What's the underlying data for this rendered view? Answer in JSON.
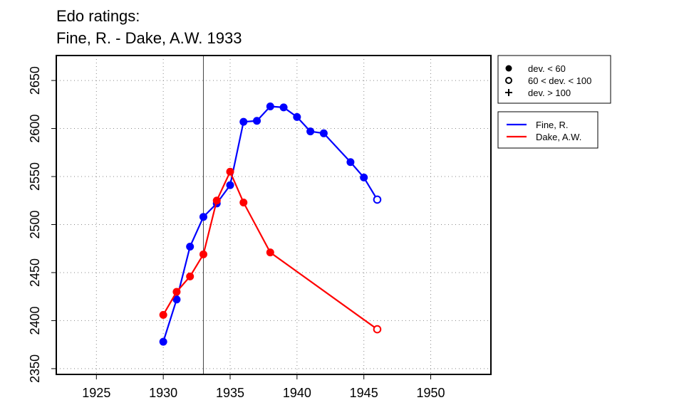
{
  "title_line1": "Edo ratings:",
  "title_line2": "Fine, R. - Dake, A.W. 1933",
  "chart_data": {
    "type": "line",
    "xlim": [
      1922,
      1954.5
    ],
    "ylim": [
      2344,
      2676
    ],
    "x_ticks": [
      1925,
      1930,
      1935,
      1940,
      1945,
      1950
    ],
    "y_ticks": [
      2350,
      2400,
      2450,
      2500,
      2550,
      2600,
      2650
    ],
    "grid": true,
    "reference_line_x": 1933,
    "series": [
      {
        "name": "Fine, R.",
        "color": "#0000ff",
        "points": [
          {
            "x": 1930,
            "y": 2378,
            "dev": "lt60"
          },
          {
            "x": 1931,
            "y": 2422,
            "dev": "lt60"
          },
          {
            "x": 1932,
            "y": 2477,
            "dev": "lt60"
          },
          {
            "x": 1933,
            "y": 2508,
            "dev": "lt60"
          },
          {
            "x": 1934,
            "y": 2522,
            "dev": "lt60"
          },
          {
            "x": 1935,
            "y": 2541,
            "dev": "lt60"
          },
          {
            "x": 1936,
            "y": 2607,
            "dev": "lt60"
          },
          {
            "x": 1937,
            "y": 2608,
            "dev": "lt60"
          },
          {
            "x": 1938,
            "y": 2623,
            "dev": "lt60"
          },
          {
            "x": 1939,
            "y": 2622,
            "dev": "lt60"
          },
          {
            "x": 1940,
            "y": 2612,
            "dev": "lt60"
          },
          {
            "x": 1941,
            "y": 2597,
            "dev": "lt60"
          },
          {
            "x": 1942,
            "y": 2595,
            "dev": "lt60"
          },
          {
            "x": 1944,
            "y": 2565,
            "dev": "lt60"
          },
          {
            "x": 1945,
            "y": 2549,
            "dev": "lt60"
          },
          {
            "x": 1946,
            "y": 2526,
            "dev": "60to100"
          }
        ]
      },
      {
        "name": "Dake, A.W.",
        "color": "#ff0000",
        "points": [
          {
            "x": 1930,
            "y": 2406,
            "dev": "lt60"
          },
          {
            "x": 1931,
            "y": 2430,
            "dev": "lt60"
          },
          {
            "x": 1932,
            "y": 2446,
            "dev": "lt60"
          },
          {
            "x": 1933,
            "y": 2469,
            "dev": "lt60"
          },
          {
            "x": 1934,
            "y": 2525,
            "dev": "lt60"
          },
          {
            "x": 1935,
            "y": 2555,
            "dev": "lt60"
          },
          {
            "x": 1936,
            "y": 2523,
            "dev": "lt60"
          },
          {
            "x": 1938,
            "y": 2471,
            "dev": "lt60"
          },
          {
            "x": 1946,
            "y": 2391,
            "dev": "60to100"
          }
        ]
      }
    ],
    "symbol_legend": [
      {
        "symbol": "filled-circle",
        "label": "dev. < 60"
      },
      {
        "symbol": "open-circle",
        "label": "60 < dev. < 100"
      },
      {
        "symbol": "plus",
        "label": "dev. > 100"
      }
    ]
  }
}
